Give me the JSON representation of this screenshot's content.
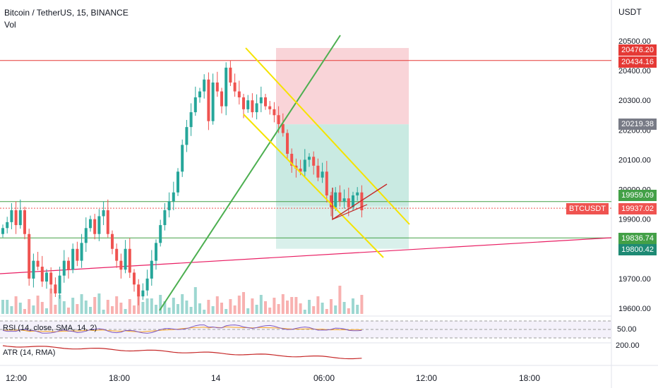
{
  "header": {
    "symbol_title": "Bitcoin / TetherUS, 15, BINANCE",
    "indicator_vol": "Vol",
    "currency": "USDT"
  },
  "panes": {
    "rsi_label": "RSI (14, close, SMA, 14, 2)",
    "rsi_value": "50.00",
    "atr_label": "ATR (14, RMA)",
    "atr_value": "200.00"
  },
  "badges": {
    "stop_high": "20476.20",
    "red_level": "20434.16",
    "entry": "20219.38",
    "green_level": "19959.09",
    "symbol_tag": "BTCUSDT",
    "last_price": "19937.02",
    "support_level": "19836.74",
    "target": "19800.42"
  },
  "colors": {
    "up": "#26a69a",
    "down": "#ef5350",
    "stop_zone": "#f7c6cb",
    "target_zone": "#bfe6dd",
    "channel": "#f5e300",
    "trend_green": "#4caf50",
    "red_line": "#e53935",
    "pink_line": "#e91e63",
    "rsi_line": "#7e57c2",
    "rsi_sma": "#f9a825",
    "atr_line": "#c62828"
  },
  "chart_data": {
    "type": "candlestick",
    "y_axis": {
      "ticks": [
        20500,
        20400,
        20300,
        20200,
        20100,
        20000,
        19900,
        19700,
        19600
      ],
      "tick_labels": [
        "20500.00",
        "20400.00",
        "20300.00",
        "20200.00",
        "20100.00",
        "20000.00",
        "19900.00",
        "19700.00",
        "19600.00"
      ]
    },
    "x_axis": {
      "tick_labels": [
        "12:00",
        "18:00",
        "14",
        "06:00",
        "12:00",
        "18:00"
      ]
    },
    "levels": {
      "red_horizontal": 20434.16,
      "green_horizontal_1": 19959.09,
      "green_horizontal_2": 19836.74,
      "last_price": 19937.02
    },
    "position": {
      "stop": 20476.2,
      "entry": 20219.38,
      "target": 19800.42
    },
    "candles_close": [
      19870,
      19890,
      19930,
      19880,
      19930,
      19850,
      19700,
      19760,
      19740,
      19690,
      19720,
      19680,
      19650,
      19710,
      19760,
      19730,
      19800,
      19760,
      19820,
      19870,
      19900,
      19850,
      19910,
      19930,
      19850,
      19800,
      19760,
      19730,
      19800,
      19720,
      19680,
      19640,
      19660,
      19700,
      19760,
      19820,
      19880,
      19930,
      19960,
      19990,
      20060,
      20150,
      20210,
      20260,
      20310,
      20330,
      20370,
      20230,
      20360,
      20330,
      20280,
      20410,
      20360,
      20330,
      20310,
      20270,
      20300,
      20260,
      20290,
      20310,
      20280,
      20270,
      20250,
      20220,
      20190,
      20120,
      20080,
      20070,
      20060,
      20100,
      20110,
      20080,
      20040,
      20060,
      19980,
      19940,
      19990,
      19960,
      19970,
      19940,
      19980,
      19990,
      19930
    ],
    "rsi_value": 50,
    "atr_value": 200
  }
}
